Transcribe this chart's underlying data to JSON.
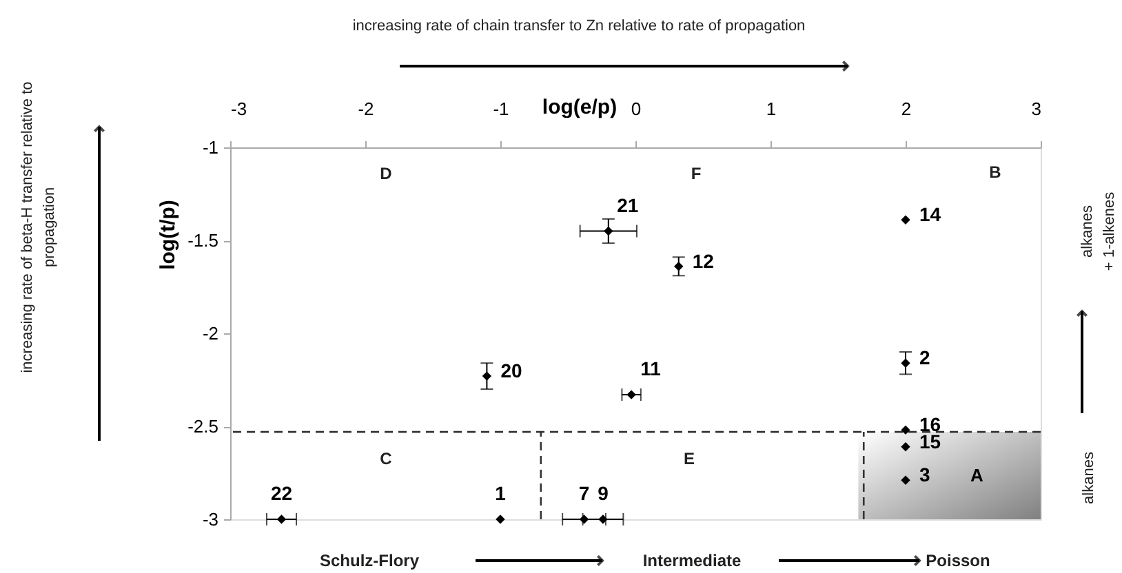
{
  "chart_data": {
    "type": "scatter",
    "xlabel": "log(e/p)",
    "ylabel": "log(t/p)",
    "xlim": [
      -3,
      3
    ],
    "xticks": [
      -3,
      -2,
      -1,
      0,
      1,
      2,
      3
    ],
    "ylim": [
      -3,
      -1
    ],
    "yticks": [
      -3,
      -2.5,
      -2,
      -1.5,
      -1
    ],
    "x": [
      -2.62,
      -1.0,
      -0.38,
      -0.24,
      -1.1,
      -0.03,
      -0.2,
      0.32,
      2.0,
      2.0,
      2.0,
      2.0,
      2.0
    ],
    "values": [
      -3,
      -3,
      -3,
      -3,
      -2.23,
      -2.33,
      -1.45,
      -1.64,
      -1.39,
      -2.16,
      -2.52,
      -2.61,
      -2.79
    ],
    "errors": [
      null,
      null,
      null,
      null,
      0.07,
      null,
      0.065,
      0.05,
      null,
      0.06,
      null,
      null,
      null
    ],
    "xerrors": [
      0.11,
      null,
      0.16,
      0.15,
      null,
      0.07,
      0.21,
      null,
      null,
      null,
      null,
      null,
      null
    ],
    "color": "#000000",
    "marker": "diamond",
    "grid": false,
    "ref_lines": [
      {
        "axis": "y",
        "value": -2.53,
        "line_style": "dashed",
        "color": "#333333"
      },
      {
        "axis": "x",
        "value": -0.7,
        "line_style": "dashed",
        "color": "#333333"
      },
      {
        "axis": "x",
        "value": 1.69,
        "line_style": "dashed",
        "color": "#333333"
      }
    ],
    "bands": [
      {
        "axis": "x",
        "from": 1.65,
        "to": 3,
        "label": "A",
        "color": "#808080"
      }
    ],
    "annotations": [
      "increasing rate of chain transfer to Zn relative to rate of propagation",
      "increasing rate of beta-H transfer relative to\npropagation",
      "alkanes",
      "alkanes\n+ 1-alkenes",
      "Schulz-Flory",
      "Intermediate",
      "Poisson",
      "D",
      "F",
      "B",
      "C",
      "E",
      {
        "text": "22",
        "x": -2.62,
        "y": -3
      },
      {
        "text": "1",
        "x": -1.0,
        "y": -3
      },
      {
        "text": "7",
        "x": -0.38,
        "y": -3
      },
      {
        "text": "9",
        "x": -0.24,
        "y": -3
      },
      {
        "text": "20",
        "x": -1.1,
        "y": -2.23
      },
      {
        "text": "11",
        "x": -0.03,
        "y": -2.33
      },
      {
        "text": "21",
        "x": -0.2,
        "y": -1.45
      },
      {
        "text": "12",
        "x": 0.32,
        "y": -1.64
      },
      {
        "text": "14",
        "x": 2.0,
        "y": -1.39
      },
      {
        "text": "2",
        "x": 2.0,
        "y": -2.16
      },
      {
        "text": "16",
        "x": 2.0,
        "y": -2.52
      },
      {
        "text": "15",
        "x": 2.0,
        "y": -2.61
      },
      {
        "text": "3",
        "x": 2.0,
        "y": -2.79
      }
    ]
  }
}
